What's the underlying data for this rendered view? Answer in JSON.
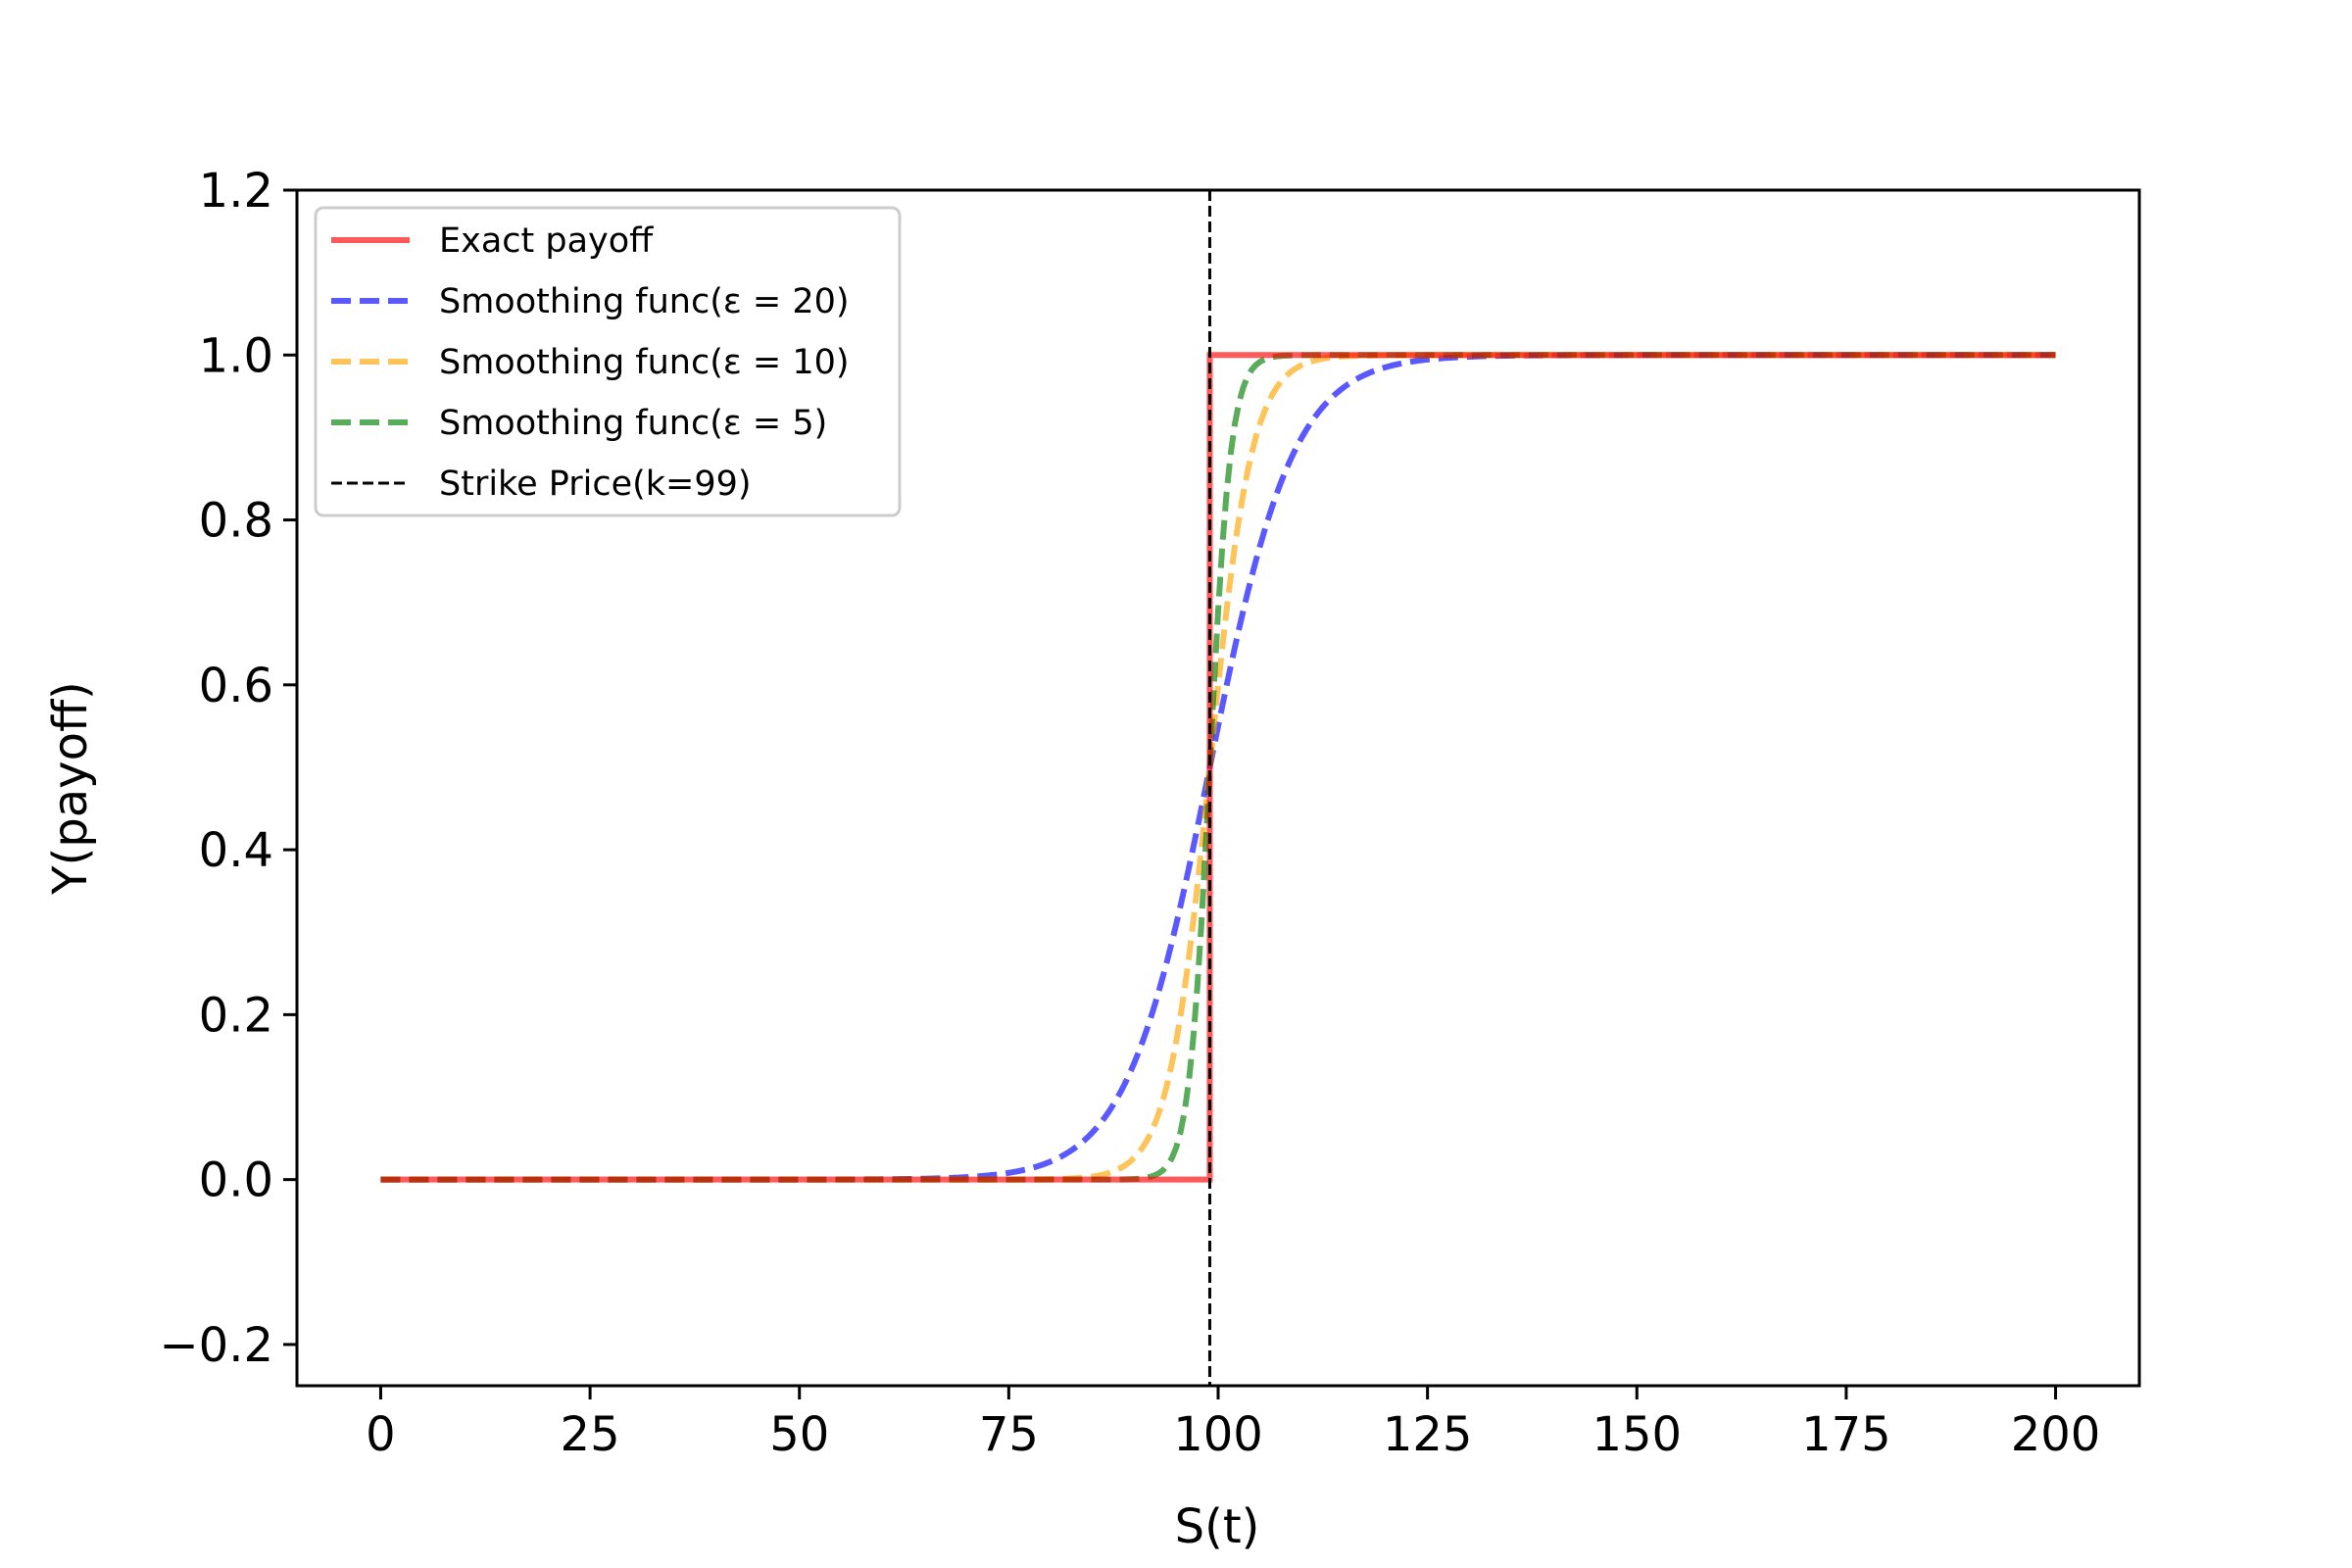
{
  "chart_data": {
    "type": "line",
    "xlabel": "S(t)",
    "ylabel": "Y(payoff)",
    "xlim": [
      -10,
      210
    ],
    "ylim": [
      -0.25,
      1.2
    ],
    "x_ticks": [
      0,
      25,
      50,
      75,
      100,
      125,
      150,
      175,
      200
    ],
    "x_tick_labels": [
      "0",
      "25",
      "50",
      "75",
      "100",
      "125",
      "150",
      "175",
      "200"
    ],
    "y_ticks": [
      -0.2,
      0.0,
      0.2,
      0.4,
      0.6,
      0.8,
      1.0,
      1.2
    ],
    "y_tick_labels": [
      "−0.2",
      "0.0",
      "0.2",
      "0.4",
      "0.6",
      "0.8",
      "1.0",
      "1.2"
    ],
    "grid": false,
    "legend_position": "upper-left",
    "strike_price": 99,
    "x_range": [
      0,
      200
    ],
    "series": [
      {
        "name": "Exact payoff",
        "kind": "step",
        "color": "#ff0000",
        "style": "solid",
        "x": [
          0,
          99,
          99,
          200
        ],
        "y": [
          0,
          0,
          1,
          1
        ]
      },
      {
        "name": "Smoothing func(ε = 20)",
        "kind": "sigmoid",
        "epsilon": 20,
        "color": "#0000ff",
        "style": "dashed"
      },
      {
        "name": "Smoothing func(ε = 10)",
        "kind": "sigmoid",
        "epsilon": 10,
        "color": "#ffa500",
        "style": "dashed"
      },
      {
        "name": "Smoothing func(ε = 5)",
        "kind": "sigmoid",
        "epsilon": 5,
        "color": "#008000",
        "style": "dashed"
      },
      {
        "name": "Strike Price(k=99)",
        "kind": "vline",
        "x": 99,
        "color": "#000000",
        "style": "dashed-thin"
      }
    ]
  }
}
